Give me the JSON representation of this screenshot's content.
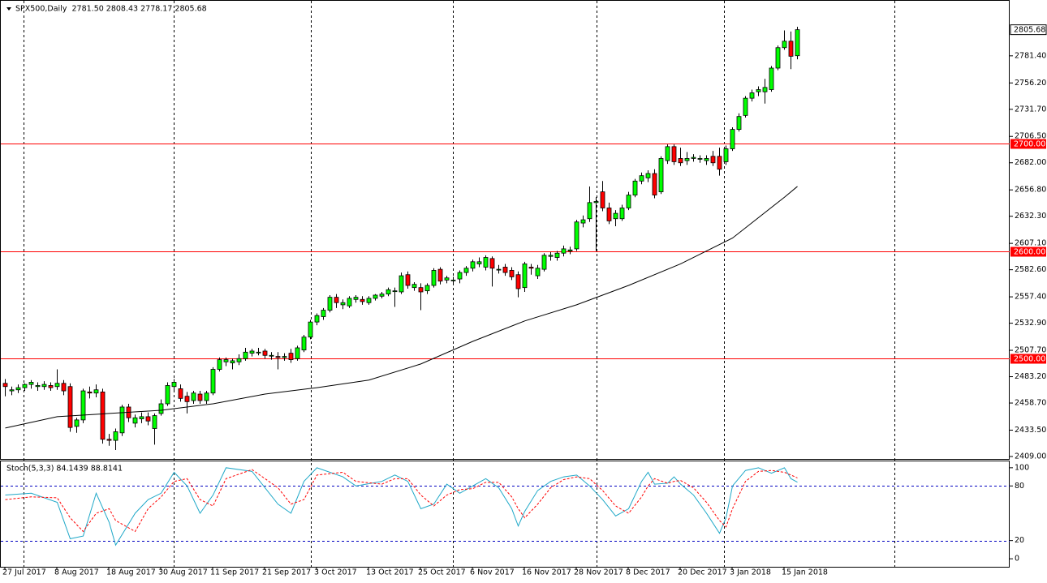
{
  "chart_data": [
    {
      "type": "candlestick",
      "title": "SPX500,Daily  2781.50 2808.43 2778.17 2805.68",
      "categories": [
        "27 Jul 2017",
        null,
        null,
        null,
        null,
        null,
        null,
        null,
        "8 Aug 2017",
        null,
        null,
        null,
        null,
        null,
        null,
        null,
        "18 Aug 2017",
        null,
        null,
        null,
        null,
        null,
        null,
        null,
        "30 Aug 2017",
        null,
        null,
        null,
        null,
        null,
        null,
        null,
        "11 Sep 2017",
        null,
        null,
        null,
        null,
        null,
        null,
        null,
        "21 Sep 2017",
        null,
        null,
        null,
        null,
        null,
        null,
        null,
        "3 Oct 2017",
        null,
        null,
        null,
        null,
        null,
        null,
        null,
        "13 Oct 2017",
        null,
        null,
        null,
        null,
        null,
        null,
        null,
        "25 Oct 2017",
        null,
        null,
        null,
        null,
        null,
        null,
        null,
        "6 Nov 2017",
        null,
        null,
        null,
        null,
        null,
        null,
        null,
        "16 Nov 2017",
        null,
        null,
        null,
        null,
        null,
        null,
        null,
        "28 Nov 2017",
        null,
        null,
        null,
        null,
        null,
        null,
        null,
        "8 Dec 2017",
        null,
        null,
        null,
        null,
        null,
        null,
        null,
        "20 Dec 2017",
        null,
        null,
        null,
        null,
        null,
        null,
        null,
        "3 Jan 2018",
        null,
        null,
        null,
        null,
        null,
        null,
        null,
        "15 Jan 2018",
        null,
        null
      ],
      "open": [
        2477,
        2470,
        2471,
        2473,
        2476,
        2474,
        2474,
        2475,
        2474,
        2477,
        2474,
        2437,
        2443,
        2469,
        2468,
        2469,
        2425,
        2424,
        2431,
        2455,
        2440,
        2444,
        2446,
        2435,
        2449,
        2458,
        2474,
        2472,
        2465,
        2461,
        2467,
        2461,
        2468,
        2490,
        2497,
        2496,
        2497,
        2500,
        2505,
        2506,
        2507,
        2503,
        2502,
        2501,
        2505,
        2500,
        2508,
        2520,
        2534,
        2539,
        2545,
        2557,
        2550,
        2549,
        2555,
        2555,
        2552,
        2556,
        2558,
        2560,
        2563,
        2562,
        2578,
        2566,
        2566,
        2563,
        2568,
        2583,
        2573,
        2573,
        2574,
        2580,
        2584,
        2588,
        2585,
        2593,
        2583,
        2585,
        2582,
        2578,
        2566,
        2585,
        2577,
        2583,
        2595,
        2594,
        2598,
        2600,
        2602,
        2626,
        2630,
        2645,
        2655,
        2640,
        2630,
        2630,
        2640,
        2652,
        2665,
        2668,
        2672,
        2655,
        2684,
        2697,
        2686,
        2684,
        2686,
        2686,
        2684,
        2688,
        2688,
        2683,
        2695,
        2713,
        2726,
        2742,
        2748,
        2748,
        2750,
        2770,
        2789,
        2795,
        2781.5
      ],
      "high": [
        2481,
        2474,
        2476,
        2477,
        2480,
        2478,
        2479,
        2478,
        2490,
        2480,
        2477,
        2445,
        2472,
        2474,
        2476,
        2472,
        2430,
        2435,
        2457,
        2458,
        2448,
        2450,
        2450,
        2449,
        2462,
        2478,
        2481,
        2476,
        2469,
        2470,
        2470,
        2470,
        2492,
        2501,
        2501,
        2500,
        2504,
        2510,
        2509,
        2510,
        2509,
        2506,
        2506,
        2505,
        2509,
        2512,
        2522,
        2536,
        2542,
        2547,
        2559,
        2560,
        2555,
        2558,
        2559,
        2558,
        2558,
        2560,
        2562,
        2566,
        2566,
        2580,
        2581,
        2571,
        2570,
        2570,
        2584,
        2585,
        2577,
        2576,
        2582,
        2586,
        2592,
        2594,
        2596,
        2595,
        2587,
        2588,
        2585,
        2581,
        2590,
        2588,
        2587,
        2598,
        2599,
        2600,
        2605,
        2604,
        2629,
        2633,
        2660,
        2650,
        2665,
        2645,
        2638,
        2643,
        2655,
        2667,
        2673,
        2675,
        2676,
        2688,
        2699,
        2699,
        2696,
        2692,
        2690,
        2689,
        2689,
        2693,
        2696,
        2698,
        2715,
        2728,
        2744,
        2750,
        2753,
        2760,
        2772,
        2791,
        2805,
        2804,
        2808.43
      ],
      "low": [
        2465,
        2466,
        2468,
        2470,
        2472,
        2470,
        2471,
        2470,
        2471,
        2466,
        2432,
        2431,
        2440,
        2463,
        2464,
        2421,
        2419,
        2415,
        2428,
        2441,
        2436,
        2440,
        2438,
        2420,
        2447,
        2456,
        2470,
        2460,
        2449,
        2458,
        2458,
        2458,
        2466,
        2488,
        2493,
        2490,
        2494,
        2498,
        2502,
        2503,
        2500,
        2499,
        2490,
        2498,
        2496,
        2498,
        2506,
        2518,
        2531,
        2536,
        2543,
        2547,
        2546,
        2547,
        2552,
        2550,
        2550,
        2554,
        2556,
        2558,
        2548,
        2560,
        2565,
        2563,
        2545,
        2560,
        2566,
        2569,
        2570,
        2570,
        2570,
        2577,
        2581,
        2585,
        2582,
        2567,
        2579,
        2577,
        2573,
        2557,
        2562,
        2578,
        2574,
        2581,
        2591,
        2591,
        2595,
        2597,
        2600,
        2622,
        2627,
        2600,
        2637,
        2625,
        2623,
        2628,
        2638,
        2650,
        2662,
        2664,
        2649,
        2653,
        2681,
        2680,
        2679,
        2680,
        2683,
        2682,
        2680,
        2679,
        2670,
        2680,
        2693,
        2711,
        2724,
        2739,
        2744,
        2737,
        2748,
        2768,
        2787,
        2769,
        2778.17
      ],
      "close": [
        2474,
        2471,
        2473,
        2476,
        2478,
        2475,
        2476,
        2473,
        2477,
        2470,
        2436,
        2443,
        2470,
        2468,
        2471,
        2425,
        2424,
        2432,
        2455,
        2445,
        2445,
        2446,
        2442,
        2447,
        2458,
        2475,
        2478,
        2463,
        2460,
        2468,
        2461,
        2468,
        2490,
        2499,
        2499,
        2498,
        2500,
        2506,
        2507,
        2506,
        2503,
        2503,
        2501,
        2502,
        2499,
        2510,
        2520,
        2534,
        2540,
        2545,
        2557,
        2552,
        2552,
        2556,
        2557,
        2553,
        2556,
        2559,
        2560,
        2564,
        2563,
        2577,
        2568,
        2569,
        2562,
        2568,
        2582,
        2572,
        2575,
        2573,
        2580,
        2584,
        2590,
        2590,
        2594,
        2584,
        2583,
        2580,
        2576,
        2565,
        2588,
        2584,
        2584,
        2596,
        2596,
        2598,
        2602,
        2601,
        2627,
        2629,
        2645,
        2646,
        2640,
        2628,
        2635,
        2640,
        2652,
        2665,
        2670,
        2672,
        2652,
        2686,
        2697,
        2683,
        2682,
        2686,
        2687,
        2686,
        2686,
        2682,
        2676,
        2695,
        2713,
        2725,
        2742,
        2747,
        2750,
        2752,
        2770,
        2789,
        2795,
        2781,
        2805.68
      ],
      "up_color": "#00ff00",
      "down_color": "#ff0000",
      "ma": {
        "color": "#000000",
        "x": [
          0,
          8,
          16,
          24,
          32,
          40,
          48,
          56,
          64,
          72,
          80,
          88,
          96,
          104,
          112,
          120,
          122
        ],
        "values": [
          2435.5,
          2446,
          2449,
          2452,
          2458,
          2467,
          2473,
          2480,
          2495,
          2516,
          2535,
          2550,
          2568,
          2588,
          2612,
          2650,
          2660
        ]
      },
      "levels": [
        {
          "value": 2700,
          "label": "2700.00"
        },
        {
          "value": 2600,
          "label": "2600.00"
        },
        {
          "value": 2500,
          "label": "2500.00"
        }
      ],
      "level_color": "#ff0000",
      "ylim": [
        2406.74,
        2832.53
      ],
      "yticks": [
        {
          "value": 2781.4,
          "label": "2781.40"
        },
        {
          "value": 2756.2,
          "label": "2756.20"
        },
        {
          "value": 2731.7,
          "label": "2731.70"
        },
        {
          "value": 2706.5,
          "label": "2706.50"
        },
        {
          "value": 2682,
          "label": "2682.00"
        },
        {
          "value": 2656.8,
          "label": "2656.80"
        },
        {
          "value": 2632.3,
          "label": "2632.30"
        },
        {
          "value": 2607.1,
          "label": "2607.10"
        },
        {
          "value": 2582.6,
          "label": "2582.60"
        },
        {
          "value": 2557.4,
          "label": "2557.40"
        },
        {
          "value": 2532.9,
          "label": "2532.90"
        },
        {
          "value": 2507.7,
          "label": "2507.70"
        },
        {
          "value": 2483.2,
          "label": "2483.20"
        },
        {
          "value": 2458.7,
          "label": "2458.70"
        },
        {
          "value": 2433.5,
          "label": "2433.50"
        },
        {
          "value": 2409,
          "label": "2409.00"
        }
      ]
    },
    {
      "type": "line",
      "title": "Stoch(5,3,3) 84.1439 88.8141",
      "series": [
        {
          "color": "#1fa8c8",
          "dashed": false,
          "x": [
            0,
            4,
            8,
            10,
            12,
            14,
            16,
            17,
            20,
            22,
            24,
            26,
            28,
            30,
            32,
            34,
            38,
            42,
            44,
            46,
            48,
            52,
            54,
            58,
            60,
            62,
            64,
            66,
            68,
            70,
            72,
            74,
            76,
            78,
            79,
            80,
            82,
            84,
            86,
            88,
            90,
            92,
            94,
            96,
            98,
            99,
            100,
            102,
            103,
            104,
            106,
            108,
            110,
            111,
            112,
            114,
            116,
            118,
            120,
            121,
            122
          ],
          "values": [
            70,
            72,
            62,
            22,
            25,
            72,
            40,
            15,
            50,
            65,
            72,
            95,
            80,
            50,
            70,
            100,
            96,
            60,
            50,
            85,
            100,
            90,
            80,
            85,
            92,
            85,
            55,
            60,
            82,
            72,
            80,
            88,
            78,
            55,
            36,
            52,
            75,
            85,
            90,
            92,
            80,
            65,
            47,
            55,
            85,
            95,
            82,
            83,
            90,
            82,
            70,
            50,
            28,
            45,
            80,
            97,
            100,
            94,
            100,
            88,
            84.1439
          ]
        },
        {
          "color": "#ff0000",
          "dashed": true,
          "x": [
            0,
            4,
            8,
            10,
            12,
            14,
            16,
            17,
            20,
            22,
            24,
            26,
            28,
            30,
            32,
            34,
            38,
            42,
            44,
            46,
            48,
            52,
            54,
            58,
            60,
            62,
            64,
            66,
            68,
            70,
            72,
            74,
            76,
            78,
            79,
            80,
            82,
            84,
            86,
            88,
            90,
            92,
            94,
            96,
            98,
            99,
            100,
            102,
            103,
            104,
            106,
            108,
            110,
            111,
            112,
            114,
            116,
            118,
            120,
            121,
            122
          ],
          "values": [
            65,
            68,
            67,
            45,
            30,
            50,
            55,
            42,
            30,
            55,
            68,
            85,
            88,
            65,
            58,
            88,
            98,
            78,
            60,
            65,
            92,
            95,
            85,
            82,
            88,
            88,
            70,
            58,
            70,
            76,
            77,
            84,
            84,
            68,
            55,
            45,
            60,
            78,
            87,
            90,
            88,
            75,
            58,
            50,
            68,
            80,
            88,
            83,
            85,
            86,
            78,
            62,
            42,
            35,
            55,
            85,
            96,
            97,
            95,
            92,
            88.8141
          ]
        }
      ],
      "levels": [
        80,
        20
      ],
      "level_color": "#0000c0",
      "ylim": [
        -8.8,
        107
      ],
      "yticks": [
        100,
        80,
        20,
        0
      ]
    }
  ]
}
